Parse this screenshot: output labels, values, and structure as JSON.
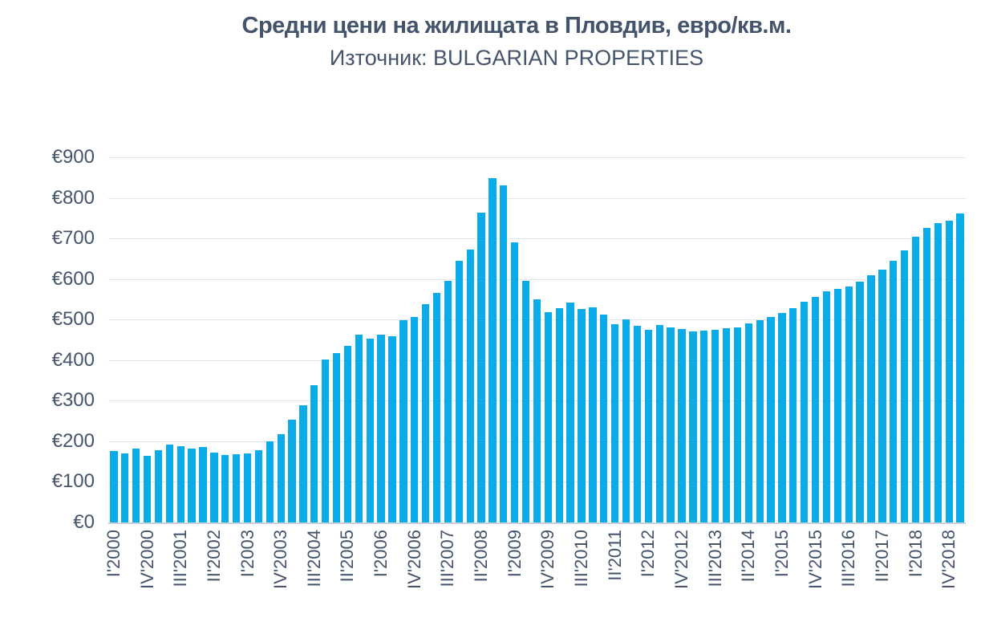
{
  "header": {
    "title": "Средни цени на жилищата в Пловдив, евро/кв.м.",
    "subtitle": "Източник: BULGARIAN PROPERTIES"
  },
  "colors": {
    "bar": "#09ACE8",
    "text": "#44546A",
    "gridline": "#E1E6EB",
    "baseline": "#C9CFD6"
  },
  "chart_data": {
    "type": "bar",
    "title": "Средни цени на жилищата в Пловдив, евро/кв.м.",
    "subtitle": "Източник: BULGARIAN PROPERTIES",
    "unit": "EUR per sq.m.",
    "currency_prefix": "€",
    "ylim": [
      0,
      900
    ],
    "y_tick_step": 100,
    "y_tick_labels": [
      "€0",
      "€100",
      "€200",
      "€300",
      "€400",
      "€500",
      "€600",
      "€700",
      "€800",
      "€900"
    ],
    "x_tick_every": 3,
    "x_tick_labels": [
      "I'2000",
      "IV'2000",
      "III'2001",
      "II'2002",
      "I'2003",
      "IV'2003",
      "III'2004",
      "II'2005",
      "I'2006",
      "IV'2006",
      "III'2007",
      "II'2008",
      "I'2009",
      "IV'2009",
      "III'2010",
      "II'2011",
      "I'2012",
      "IV'2012",
      "III'2013",
      "II'2014",
      "I'2015",
      "IV'2015",
      "III'2016",
      "II'2017",
      "I'2018",
      "IV'2018"
    ],
    "grid": "horizontal",
    "legend": "none",
    "categories": [
      "I'2000",
      "II'2000",
      "III'2000",
      "IV'2000",
      "I'2001",
      "II'2001",
      "III'2001",
      "IV'2001",
      "I'2002",
      "II'2002",
      "III'2002",
      "IV'2002",
      "I'2003",
      "II'2003",
      "III'2003",
      "IV'2003",
      "I'2004",
      "II'2004",
      "III'2004",
      "IV'2004",
      "I'2005",
      "II'2005",
      "III'2005",
      "IV'2005",
      "I'2006",
      "II'2006",
      "III'2006",
      "IV'2006",
      "I'2007",
      "II'2007",
      "III'2007",
      "IV'2007",
      "I'2008",
      "II'2008",
      "III'2008",
      "IV'2008",
      "I'2009",
      "II'2009",
      "III'2009",
      "IV'2009",
      "I'2010",
      "II'2010",
      "III'2010",
      "IV'2010",
      "I'2011",
      "II'2011",
      "III'2011",
      "IV'2011",
      "I'2012",
      "II'2012",
      "III'2012",
      "IV'2012",
      "I'2013",
      "II'2013",
      "III'2013",
      "IV'2013",
      "I'2014",
      "II'2014",
      "III'2014",
      "IV'2014",
      "I'2015",
      "II'2015",
      "III'2015",
      "IV'2015",
      "I'2016",
      "II'2016",
      "III'2016",
      "IV'2016",
      "I'2017",
      "II'2017",
      "III'2017",
      "IV'2017",
      "I'2018",
      "II'2018",
      "III'2018",
      "IV'2018",
      "I'2019"
    ],
    "values": [
      177,
      171,
      181,
      165,
      179,
      191,
      188,
      181,
      185,
      172,
      167,
      169,
      171,
      178,
      200,
      218,
      254,
      289,
      338,
      402,
      417,
      436,
      462,
      452,
      463,
      458,
      498,
      507,
      538,
      565,
      595,
      645,
      673,
      763,
      848,
      830,
      691,
      596,
      550,
      519,
      529,
      542,
      526,
      531,
      513,
      488,
      500,
      484,
      475,
      487,
      480,
      477,
      470,
      472,
      475,
      478,
      481,
      490,
      498,
      506,
      516,
      528,
      543,
      556,
      570,
      576,
      581,
      593,
      610,
      624,
      645,
      670,
      705,
      726,
      738,
      744,
      761
    ]
  }
}
